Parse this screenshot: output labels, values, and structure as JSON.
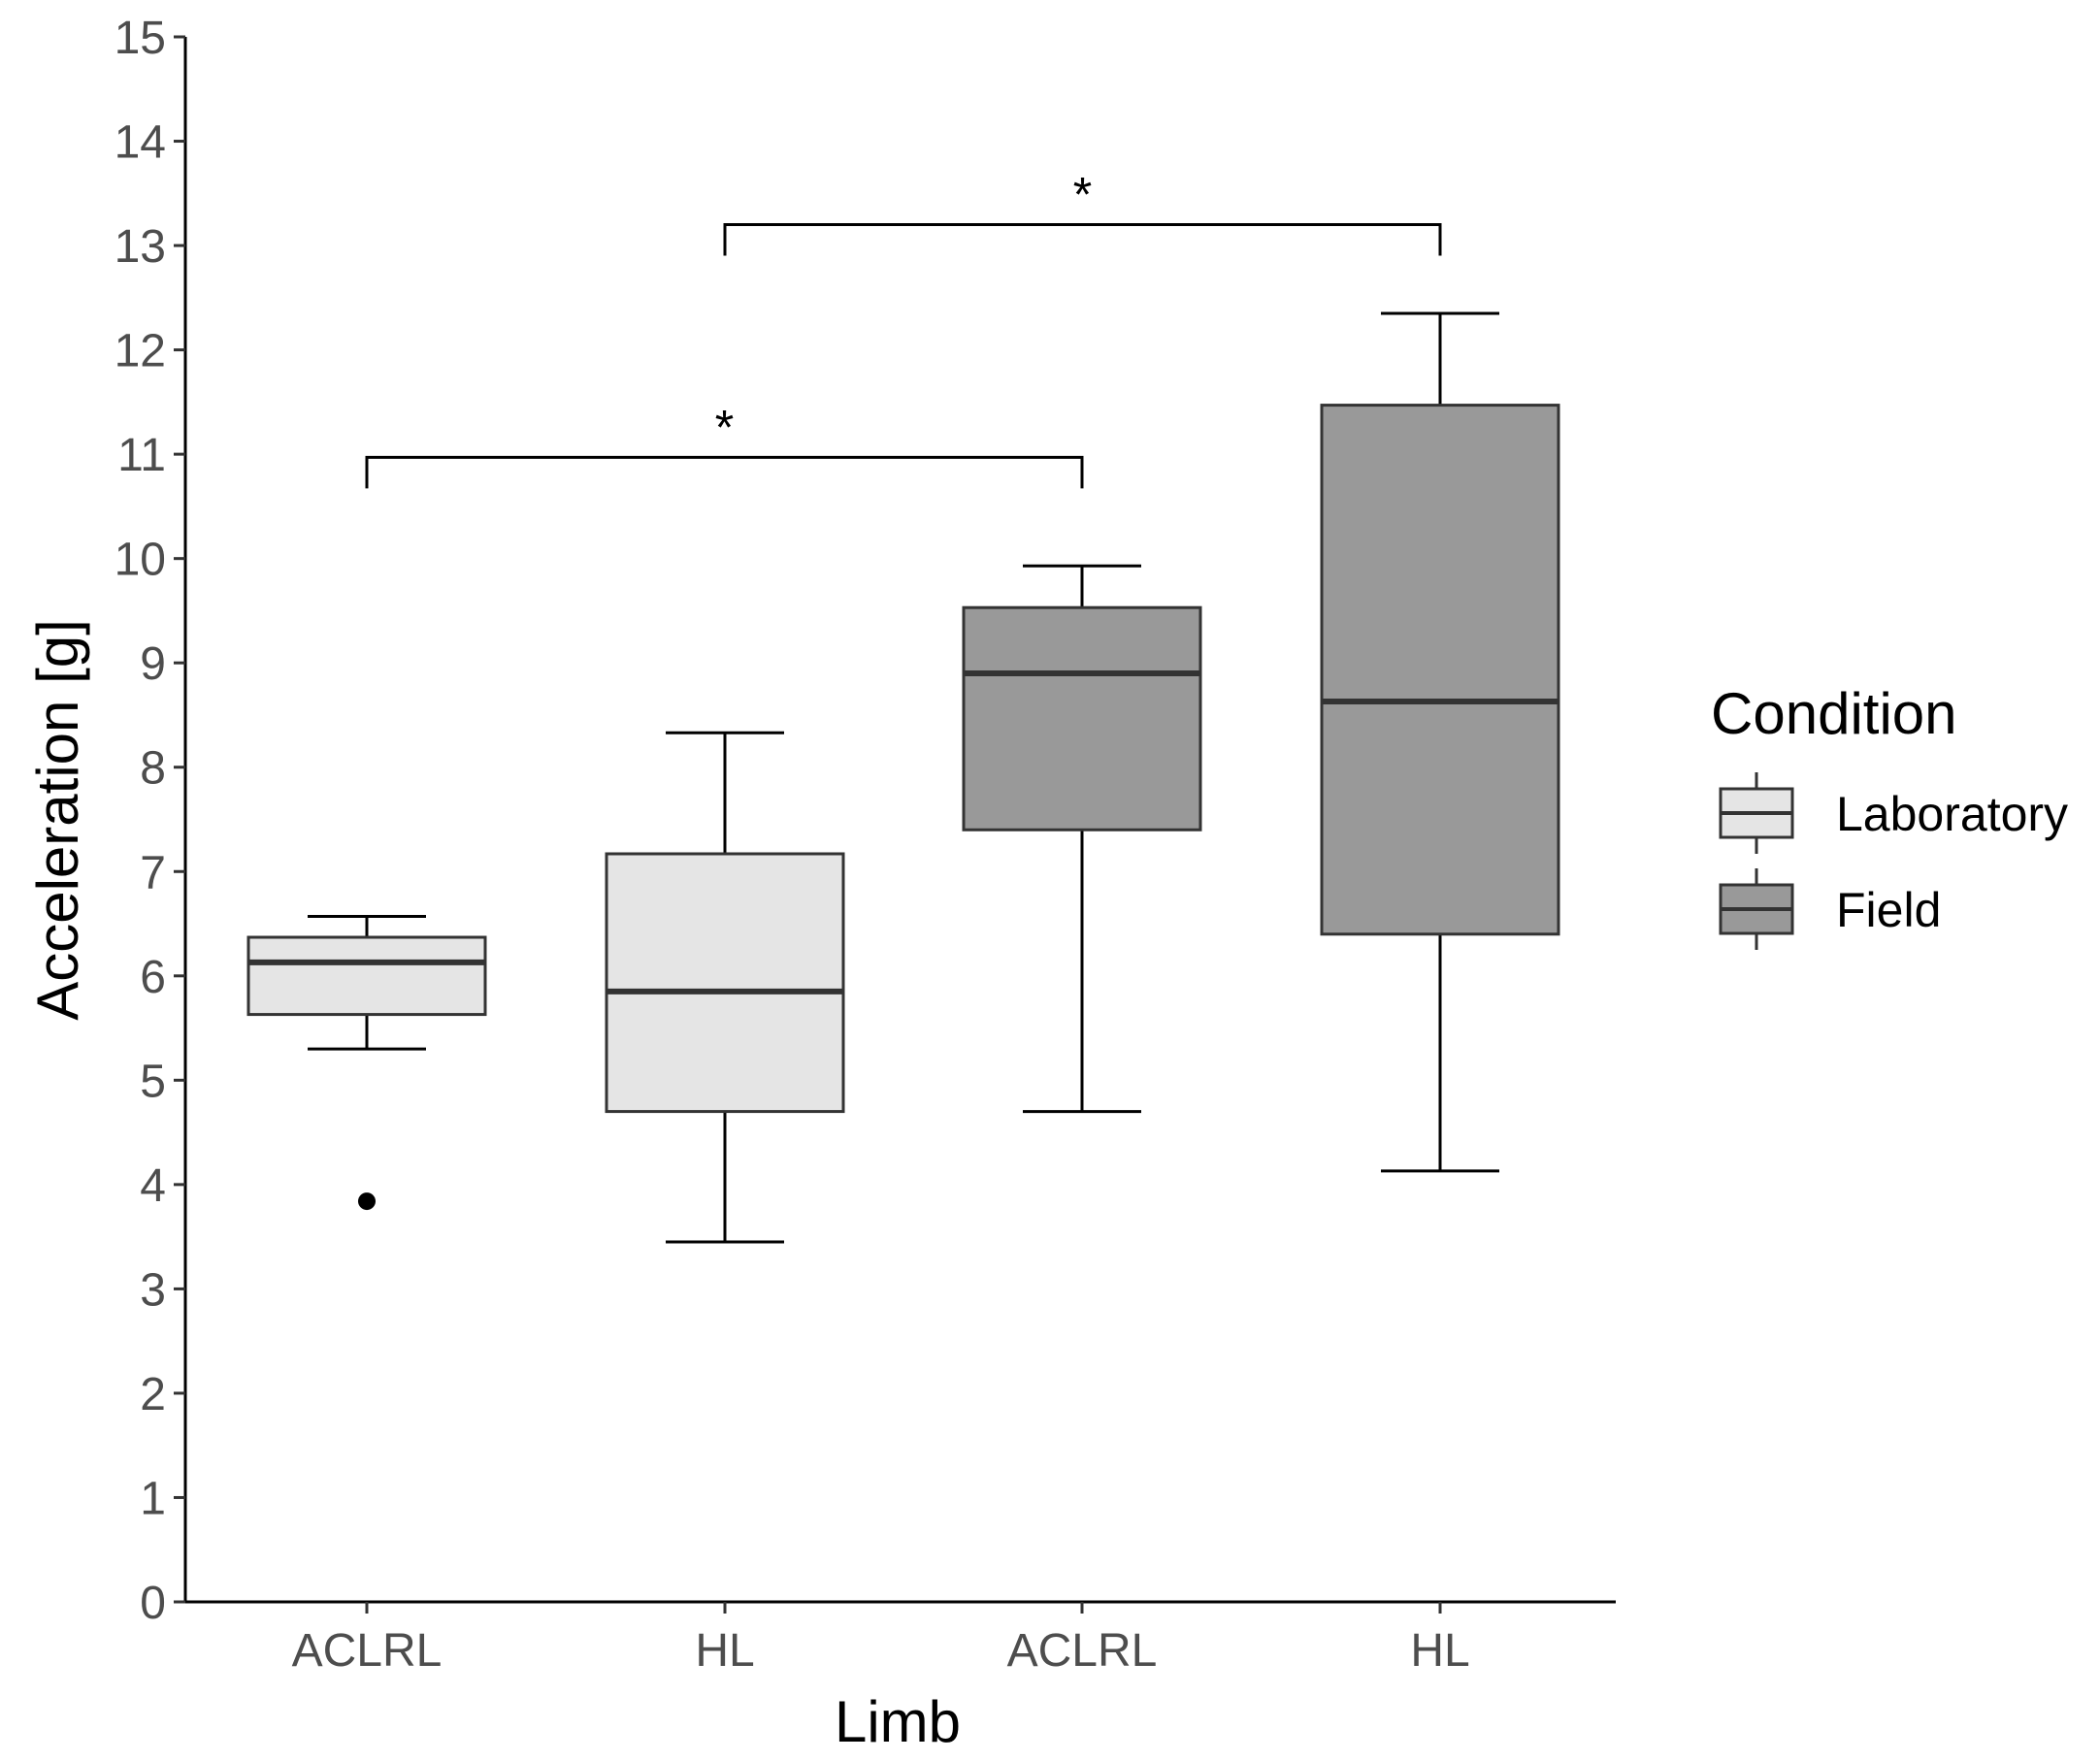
{
  "chart_data": {
    "type": "boxplot",
    "title": "",
    "xlabel": "Limb",
    "ylabel": "Acceleration [g]",
    "ylim": [
      0,
      15
    ],
    "yticks": [
      0,
      1,
      2,
      3,
      4,
      5,
      6,
      7,
      8,
      9,
      10,
      11,
      12,
      13,
      14,
      15
    ],
    "categories": [
      "ACLRL",
      "HL",
      "ACLRL",
      "HL"
    ],
    "boxes": [
      {
        "category": "ACLRL",
        "condition": "Laboratory",
        "whisker_low": 5.3,
        "q1": 5.63,
        "median": 6.13,
        "q3": 6.37,
        "whisker_high": 6.57,
        "outliers": [
          3.84
        ]
      },
      {
        "category": "HL",
        "condition": "Laboratory",
        "whisker_low": 3.45,
        "q1": 4.7,
        "median": 5.85,
        "q3": 7.17,
        "whisker_high": 8.33,
        "outliers": []
      },
      {
        "category": "ACLRL",
        "condition": "Field",
        "whisker_low": 4.7,
        "q1": 7.4,
        "median": 8.9,
        "q3": 9.53,
        "whisker_high": 9.93,
        "outliers": []
      },
      {
        "category": "HL",
        "condition": "Field",
        "whisker_low": 4.13,
        "q1": 6.4,
        "median": 8.63,
        "q3": 11.47,
        "whisker_high": 12.35,
        "outliers": []
      }
    ],
    "significance": [
      {
        "from": 0,
        "to": 2,
        "y": 10.97,
        "label": "*"
      },
      {
        "from": 1,
        "to": 3,
        "y": 13.2,
        "label": "*"
      }
    ],
    "legend": {
      "title": "Condition",
      "position": "right",
      "entries": [
        {
          "label": "Laboratory",
          "color": "#e5e5e5"
        },
        {
          "label": "Field",
          "color": "#999999"
        }
      ]
    },
    "colors": {
      "Laboratory": "#e5e5e5",
      "Field": "#999999",
      "line": "#333333",
      "axis": "#000000"
    }
  }
}
